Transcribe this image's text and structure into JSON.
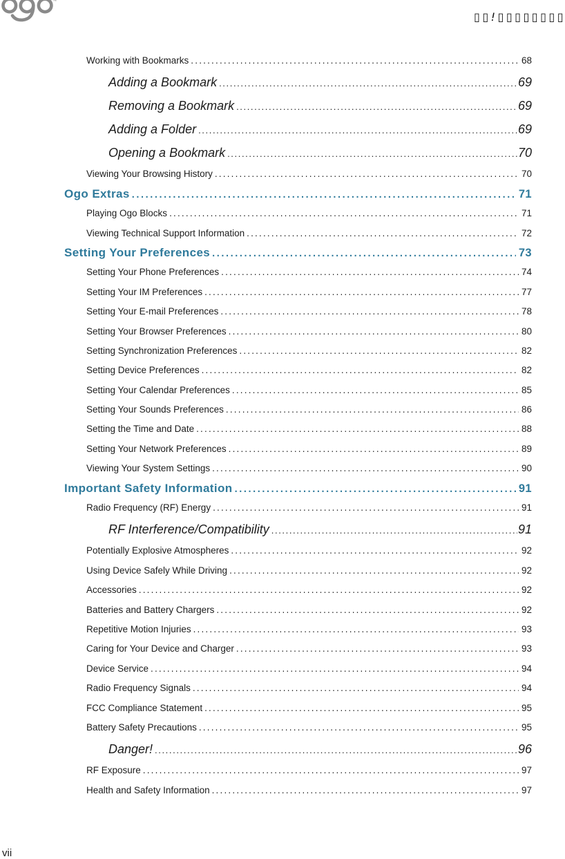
{
  "header": {
    "logo_text": "ogo",
    "logo_trademark": "TM",
    "right_garbled_text": "▯▯!▯▯▯▯▯▯▯▯"
  },
  "footer": {
    "page_label": "vii"
  },
  "colors": {
    "heading_accent": "#2f7a9b",
    "body_text": "#1c1c1c",
    "logo_gray": "#8a8a8a"
  },
  "toc": {
    "entries": [
      {
        "level": 2,
        "label": "Working with Bookmarks",
        "page": "68"
      },
      {
        "level": 3,
        "label": "Adding a Bookmark",
        "page": "69"
      },
      {
        "level": 3,
        "label": "Removing a Bookmark",
        "page": "69"
      },
      {
        "level": 3,
        "label": "Adding a Folder",
        "page": "69"
      },
      {
        "level": 3,
        "label": "Opening a Bookmark",
        "page": "70"
      },
      {
        "level": 2,
        "label": "Viewing Your Browsing History",
        "page": "70"
      },
      {
        "level": 1,
        "label": "Ogo Extras",
        "page": "71"
      },
      {
        "level": 2,
        "label": "Playing Ogo Blocks",
        "page": "71"
      },
      {
        "level": 2,
        "label": "Viewing Technical Support Information",
        "page": "72"
      },
      {
        "level": 1,
        "label": "Setting Your Preferences",
        "page": "73"
      },
      {
        "level": 2,
        "label": "Setting Your Phone Preferences",
        "page": "74"
      },
      {
        "level": 2,
        "label": "Setting Your IM Preferences",
        "page": "77"
      },
      {
        "level": 2,
        "label": "Setting Your E-mail Preferences",
        "page": "78"
      },
      {
        "level": 2,
        "label": "Setting Your Browser Preferences",
        "page": "80"
      },
      {
        "level": 2,
        "label": "Setting Synchronization Preferences",
        "page": "82"
      },
      {
        "level": 2,
        "label": "Setting Device Preferences",
        "page": "82"
      },
      {
        "level": 2,
        "label": "Setting Your Calendar Preferences",
        "page": "85"
      },
      {
        "level": 2,
        "label": "Setting Your Sounds Preferences",
        "page": "86"
      },
      {
        "level": 2,
        "label": "Setting the Time and Date",
        "page": "88"
      },
      {
        "level": 2,
        "label": "Setting Your Network Preferences",
        "page": "89"
      },
      {
        "level": 2,
        "label": "Viewing Your System Settings",
        "page": "90"
      },
      {
        "level": 1,
        "label": "Important Safety Information",
        "page": "91"
      },
      {
        "level": 2,
        "label": "Radio Frequency (RF) Energy",
        "page": "91"
      },
      {
        "level": 3,
        "label": "RF Interference/Compatibility",
        "page": "91"
      },
      {
        "level": 2,
        "label": "Potentially Explosive Atmospheres",
        "page": "92"
      },
      {
        "level": 2,
        "label": "Using Device Safely While Driving",
        "page": "92"
      },
      {
        "level": 2,
        "label": "Accessories",
        "page": "92"
      },
      {
        "level": 2,
        "label": "Batteries and Battery Chargers",
        "page": "92"
      },
      {
        "level": 2,
        "label": "Repetitive Motion Injuries",
        "page": "93"
      },
      {
        "level": 2,
        "label": "Caring for Your Device and Charger",
        "page": "93"
      },
      {
        "level": 2,
        "label": "Device Service",
        "page": "94"
      },
      {
        "level": 2,
        "label": "Radio Frequency Signals",
        "page": "94"
      },
      {
        "level": 2,
        "label": "FCC Compliance Statement",
        "page": "95"
      },
      {
        "level": 2,
        "label": "Battery Safety Precautions",
        "page": "95"
      },
      {
        "level": 3,
        "label": "Danger!",
        "page": "96"
      },
      {
        "level": 2,
        "label": "RF Exposure",
        "page": "97"
      },
      {
        "level": 2,
        "label": "Health and Safety Information",
        "page": "97"
      }
    ]
  }
}
